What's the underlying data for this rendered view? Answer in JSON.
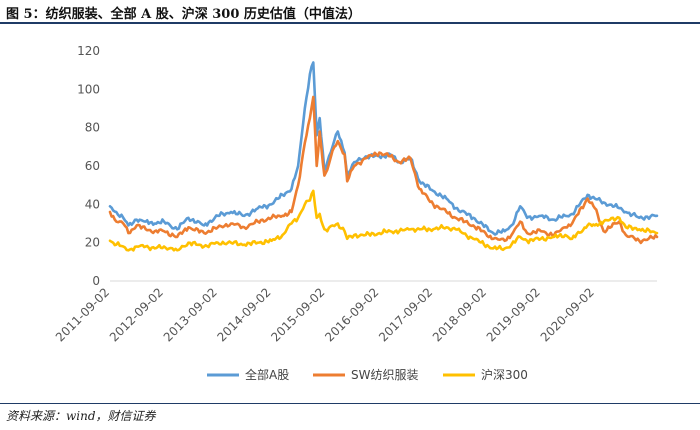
{
  "figure": {
    "title": "图 5：纺织服装、全部 A 股、沪深 300 历史估值（中值法）",
    "source": "资料来源：wind，财信证券"
  },
  "chart_data": {
    "type": "line",
    "title": "",
    "xlabel": "",
    "ylabel": "",
    "ylim": [
      0,
      120
    ],
    "yticks": [
      0,
      20,
      40,
      60,
      80,
      100,
      120
    ],
    "xlim": [
      "2011-09-02",
      "2021-10-29"
    ],
    "xticks": [
      "2011-09-02",
      "2012-09-02",
      "2013-09-02",
      "2014-09-02",
      "2015-09-02",
      "2016-09-02",
      "2017-09-02",
      "2018-09-02",
      "2019-09-02",
      "2020-09-02"
    ],
    "grid": false,
    "legend_position": "bottom",
    "colors": {
      "axis": "#d9d9d9",
      "tick_text": "#555555"
    },
    "series": [
      {
        "name": "全部A股",
        "color": "#5b9bd5",
        "points": [
          [
            "2011-09-02",
            39
          ],
          [
            "2011-10-15",
            36
          ],
          [
            "2011-12-01",
            33
          ],
          [
            "2012-01-05",
            29
          ],
          [
            "2012-03-01",
            32
          ],
          [
            "2012-05-01",
            31
          ],
          [
            "2012-07-01",
            30
          ],
          [
            "2012-09-02",
            31
          ],
          [
            "2012-12-01",
            27
          ],
          [
            "2013-02-15",
            33
          ],
          [
            "2013-06-01",
            29
          ],
          [
            "2013-09-02",
            34
          ],
          [
            "2013-12-01",
            36
          ],
          [
            "2014-03-01",
            34
          ],
          [
            "2014-06-01",
            38
          ],
          [
            "2014-09-02",
            40
          ],
          [
            "2014-11-15",
            45
          ],
          [
            "2015-01-15",
            48
          ],
          [
            "2015-03-01",
            60
          ],
          [
            "2015-04-15",
            90
          ],
          [
            "2015-05-20",
            108
          ],
          [
            "2015-06-12",
            114
          ],
          [
            "2015-07-05",
            76
          ],
          [
            "2015-07-25",
            85
          ],
          [
            "2015-08-26",
            58
          ],
          [
            "2015-09-15",
            62
          ],
          [
            "2015-10-20",
            70
          ],
          [
            "2015-11-25",
            78
          ],
          [
            "2016-01-10",
            67
          ],
          [
            "2016-01-28",
            55
          ],
          [
            "2016-03-15",
            62
          ],
          [
            "2016-06-01",
            65
          ],
          [
            "2016-09-02",
            65
          ],
          [
            "2016-11-15",
            66
          ],
          [
            "2017-01-15",
            62
          ],
          [
            "2017-04-01",
            64
          ],
          [
            "2017-06-01",
            52
          ],
          [
            "2017-09-02",
            47
          ],
          [
            "2017-12-01",
            43
          ],
          [
            "2018-02-01",
            38
          ],
          [
            "2018-06-01",
            33
          ],
          [
            "2018-10-15",
            25
          ],
          [
            "2018-12-31",
            26
          ],
          [
            "2019-02-15",
            29
          ],
          [
            "2019-04-15",
            39
          ],
          [
            "2019-06-01",
            33
          ],
          [
            "2019-09-02",
            34
          ],
          [
            "2019-12-01",
            32
          ],
          [
            "2020-02-15",
            34
          ],
          [
            "2020-04-01",
            35
          ],
          [
            "2020-07-15",
            45
          ],
          [
            "2020-09-02",
            43
          ],
          [
            "2020-11-01",
            41
          ],
          [
            "2021-02-15",
            38
          ],
          [
            "2021-04-01",
            36
          ],
          [
            "2021-07-01",
            33
          ],
          [
            "2021-10-29",
            34
          ]
        ]
      },
      {
        "name": "SW纺织服装",
        "color": "#ed7d31",
        "points": [
          [
            "2011-09-02",
            36
          ],
          [
            "2011-10-15",
            31
          ],
          [
            "2011-12-01",
            30
          ],
          [
            "2012-01-05",
            25
          ],
          [
            "2012-03-01",
            29
          ],
          [
            "2012-05-01",
            27
          ],
          [
            "2012-07-01",
            26
          ],
          [
            "2012-09-02",
            26
          ],
          [
            "2012-12-01",
            23
          ],
          [
            "2013-02-15",
            28
          ],
          [
            "2013-06-01",
            25
          ],
          [
            "2013-09-02",
            28
          ],
          [
            "2013-12-01",
            30
          ],
          [
            "2014-03-01",
            28
          ],
          [
            "2014-06-01",
            31
          ],
          [
            "2014-09-02",
            33
          ],
          [
            "2014-11-15",
            34
          ],
          [
            "2015-01-15",
            36
          ],
          [
            "2015-03-01",
            50
          ],
          [
            "2015-04-15",
            72
          ],
          [
            "2015-05-20",
            85
          ],
          [
            "2015-06-12",
            96
          ],
          [
            "2015-07-05",
            60
          ],
          [
            "2015-07-25",
            78
          ],
          [
            "2015-08-26",
            55
          ],
          [
            "2015-09-15",
            58
          ],
          [
            "2015-10-20",
            68
          ],
          [
            "2015-11-25",
            73
          ],
          [
            "2016-01-10",
            66
          ],
          [
            "2016-01-28",
            52
          ],
          [
            "2016-03-15",
            60
          ],
          [
            "2016-06-01",
            64
          ],
          [
            "2016-09-02",
            67
          ],
          [
            "2016-11-15",
            65
          ],
          [
            "2017-01-15",
            62
          ],
          [
            "2017-04-01",
            64
          ],
          [
            "2017-06-01",
            48
          ],
          [
            "2017-09-02",
            40
          ],
          [
            "2017-12-01",
            36
          ],
          [
            "2018-02-01",
            33
          ],
          [
            "2018-06-01",
            29
          ],
          [
            "2018-10-15",
            22
          ],
          [
            "2018-12-31",
            21
          ],
          [
            "2019-02-15",
            24
          ],
          [
            "2019-04-15",
            31
          ],
          [
            "2019-06-01",
            25
          ],
          [
            "2019-09-02",
            26
          ],
          [
            "2019-12-01",
            24
          ],
          [
            "2020-02-15",
            28
          ],
          [
            "2020-04-01",
            30
          ],
          [
            "2020-07-15",
            43
          ],
          [
            "2020-09-02",
            38
          ],
          [
            "2020-11-01",
            26
          ],
          [
            "2021-02-15",
            31
          ],
          [
            "2021-04-01",
            24
          ],
          [
            "2021-07-01",
            21
          ],
          [
            "2021-10-29",
            23
          ]
        ]
      },
      {
        "name": "沪深300",
        "color": "#ffc000",
        "points": [
          [
            "2011-09-02",
            21
          ],
          [
            "2011-10-15",
            19
          ],
          [
            "2011-12-01",
            18
          ],
          [
            "2012-01-05",
            16
          ],
          [
            "2012-03-01",
            18
          ],
          [
            "2012-05-01",
            18
          ],
          [
            "2012-07-01",
            17
          ],
          [
            "2012-09-02",
            18
          ],
          [
            "2012-12-01",
            16
          ],
          [
            "2013-02-15",
            20
          ],
          [
            "2013-06-01",
            18
          ],
          [
            "2013-09-02",
            20
          ],
          [
            "2013-12-01",
            20
          ],
          [
            "2014-03-01",
            19
          ],
          [
            "2014-06-01",
            20
          ],
          [
            "2014-09-02",
            21
          ],
          [
            "2014-11-15",
            24
          ],
          [
            "2015-01-15",
            30
          ],
          [
            "2015-03-01",
            33
          ],
          [
            "2015-04-15",
            40
          ],
          [
            "2015-05-20",
            42
          ],
          [
            "2015-06-12",
            47
          ],
          [
            "2015-07-05",
            33
          ],
          [
            "2015-07-25",
            35
          ],
          [
            "2015-08-26",
            27
          ],
          [
            "2015-09-15",
            26
          ],
          [
            "2015-10-20",
            29
          ],
          [
            "2015-11-25",
            30
          ],
          [
            "2016-01-10",
            26
          ],
          [
            "2016-01-28",
            22
          ],
          [
            "2016-03-15",
            24
          ],
          [
            "2016-06-01",
            24
          ],
          [
            "2016-09-02",
            25
          ],
          [
            "2016-11-15",
            26
          ],
          [
            "2017-01-15",
            26
          ],
          [
            "2017-04-01",
            27
          ],
          [
            "2017-06-01",
            27
          ],
          [
            "2017-09-02",
            27
          ],
          [
            "2017-12-01",
            28
          ],
          [
            "2018-02-01",
            27
          ],
          [
            "2018-06-01",
            22
          ],
          [
            "2018-10-15",
            17
          ],
          [
            "2018-12-31",
            17
          ],
          [
            "2019-02-15",
            19
          ],
          [
            "2019-04-15",
            23
          ],
          [
            "2019-06-01",
            21
          ],
          [
            "2019-09-02",
            22
          ],
          [
            "2019-12-01",
            23
          ],
          [
            "2020-02-15",
            24
          ],
          [
            "2020-04-01",
            22
          ],
          [
            "2020-07-15",
            29
          ],
          [
            "2020-09-02",
            29
          ],
          [
            "2020-11-01",
            31
          ],
          [
            "2021-02-15",
            33
          ],
          [
            "2021-04-01",
            28
          ],
          [
            "2021-07-01",
            27
          ],
          [
            "2021-10-29",
            25
          ]
        ]
      }
    ]
  }
}
